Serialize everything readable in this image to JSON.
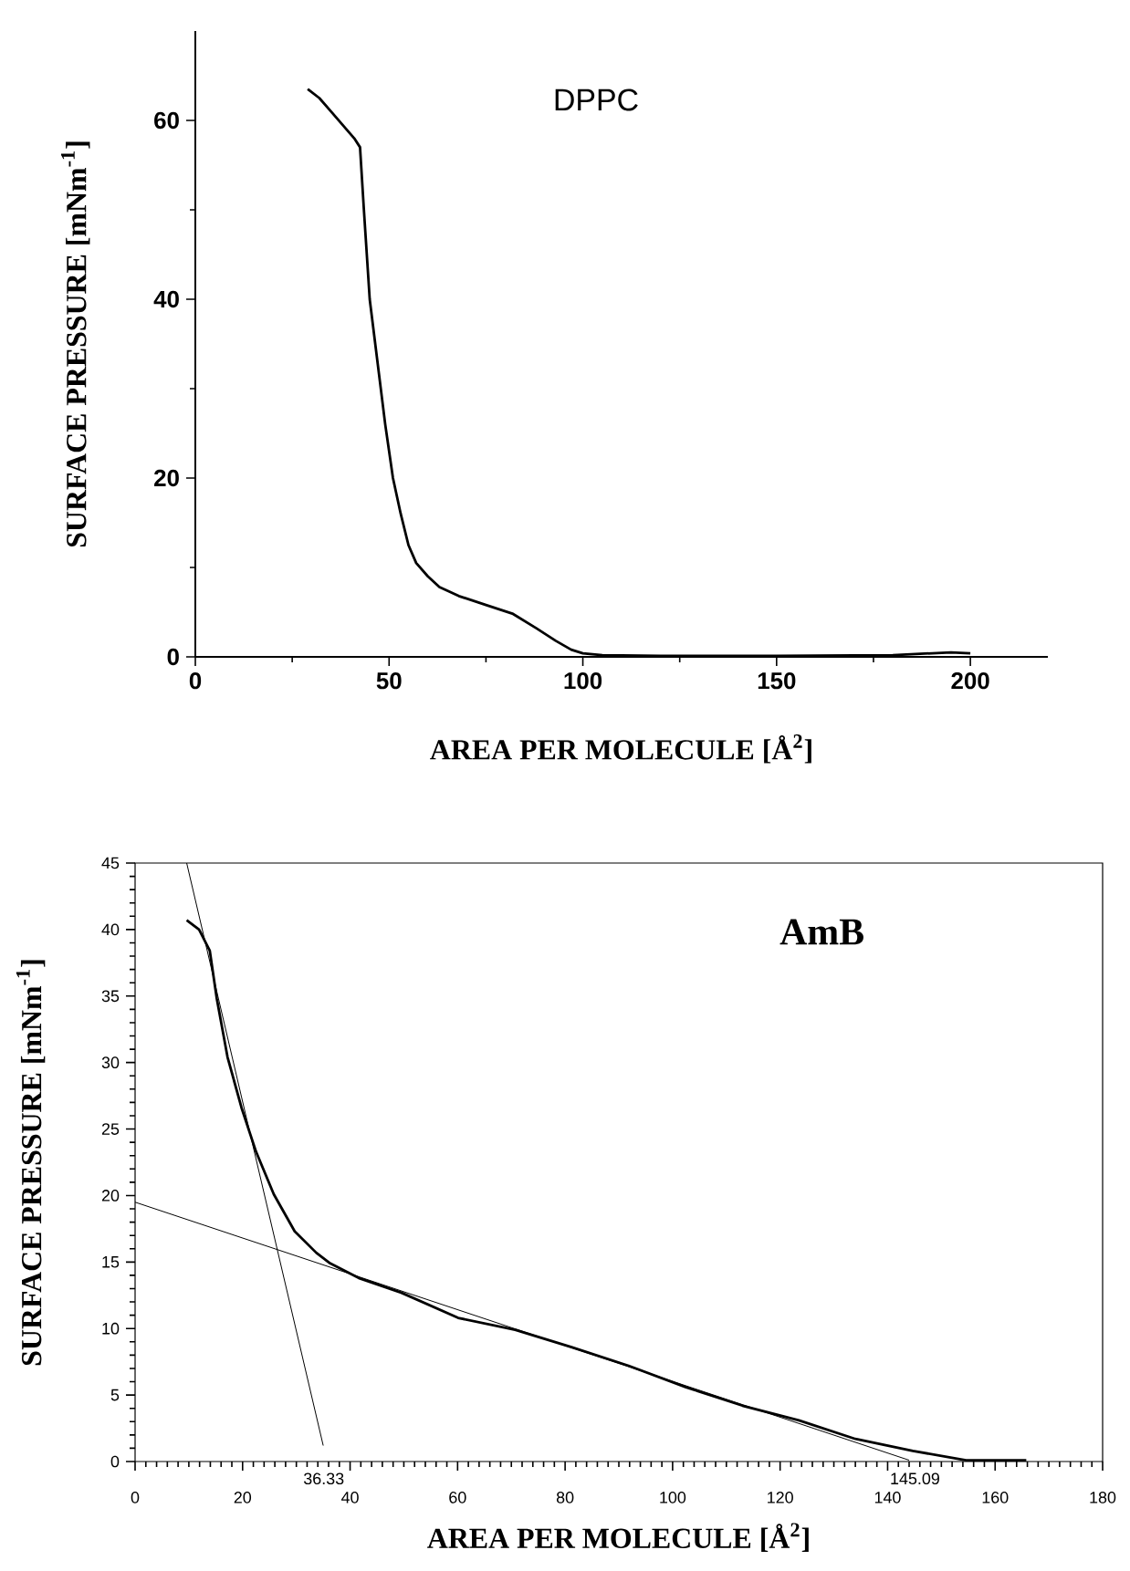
{
  "chart_data": [
    {
      "type": "line",
      "xlabel": "AREA PER MOLECULE [Å$^{2}$]",
      "ylabel": "SURFACE PRESSURE [mNm$^{-1}$]",
      "annotations": [
        "DPPC"
      ],
      "x": [
        29,
        32,
        35,
        38,
        41,
        42.5,
        43.5,
        45,
        47,
        49,
        51,
        53,
        55,
        57,
        60,
        63,
        68,
        75,
        82,
        88,
        93,
        97,
        100,
        105,
        120,
        150,
        180,
        195,
        200
      ],
      "series": [
        {
          "color": "#000000",
          "values": [
            63.5,
            62.5,
            61,
            59.5,
            58,
            57,
            50,
            40,
            33,
            26,
            20,
            16,
            12.5,
            10.5,
            9,
            7.8,
            6.8,
            5.8,
            4.8,
            3.2,
            1.8,
            0.8,
            0.4,
            0.2,
            0.1,
            0.1,
            0.2,
            0.5,
            0.4
          ]
        }
      ],
      "xlim": [
        0,
        220
      ],
      "ylim": [
        0,
        70
      ],
      "xticks": [
        0,
        {
          "value": 25,
          "label": null
        },
        50,
        {
          "value": 75,
          "label": null
        },
        100,
        {
          "value": 125,
          "label": null
        },
        150,
        {
          "value": 175,
          "label": null
        },
        200
      ],
      "yticks": [
        0,
        {
          "value": 10,
          "label": null
        },
        20,
        {
          "value": 30,
          "label": null
        },
        40,
        {
          "value": 50,
          "label": null
        },
        60
      ]
    },
    {
      "type": "line",
      "xlabel": "AREA PER MOLECULE [Å$^{2}$]",
      "ylabel": "SURFACE PRESSURE [mNm$^{-1}$]",
      "annotations": [
        "AmB",
        "36.33",
        {
          "text": "145.09",
          "x": 145.09,
          "y": 0
        }
      ],
      "x": [
        9.6,
        11.9,
        13.9,
        15.2,
        17.2,
        19.8,
        22.5,
        25.8,
        29.7,
        33.7,
        36.3,
        41.6,
        49.5,
        60.1,
        70.7,
        81.2,
        91.8,
        102.4,
        113,
        123.5,
        134,
        144.7,
        154.6,
        165.8
      ],
      "series": [
        {
          "color": "#000000",
          "values": [
            40.7,
            40.0,
            38.4,
            34.8,
            30.4,
            26.6,
            23.3,
            20.1,
            17.3,
            15.7,
            14.9,
            13.8,
            12.7,
            10.8,
            9.9,
            8.6,
            7.2,
            5.6,
            4.2,
            3.1,
            1.7,
            0.8,
            0.1,
            0.1
          ]
        },
        {
          "type": "line",
          "color": "#000000",
          "x": [
            9.6,
            35.0
          ],
          "values": [
            45,
            1.2
          ]
        },
        {
          "type": "line",
          "color": "#000000",
          "x": [
            0,
            144
          ],
          "values": [
            19.5,
            0.1
          ]
        }
      ],
      "xlim": [
        0,
        180
      ],
      "ylim": [
        0,
        45
      ],
      "xticks": [
        0,
        {
          "value": 2,
          "label": null
        },
        {
          "value": 4,
          "label": null
        },
        {
          "value": 6,
          "label": null
        },
        {
          "value": 8,
          "label": null
        },
        {
          "value": 10,
          "label": null
        },
        {
          "value": 12,
          "label": null
        },
        {
          "value": 14,
          "label": null
        },
        {
          "value": 16,
          "label": null
        },
        {
          "value": 18,
          "label": null
        },
        20,
        {
          "value": 22,
          "label": null
        },
        {
          "value": 24,
          "label": null
        },
        {
          "value": 26,
          "label": null
        },
        {
          "value": 28,
          "label": null
        },
        {
          "value": 30,
          "label": null
        },
        {
          "value": 32,
          "label": null
        },
        {
          "value": 34,
          "label": null
        },
        {
          "value": 36,
          "label": null
        },
        {
          "value": 38,
          "label": null
        },
        40,
        {
          "value": 42,
          "label": null
        },
        {
          "value": 44,
          "label": null
        },
        {
          "value": 46,
          "label": null
        },
        {
          "value": 48,
          "label": null
        },
        {
          "value": 50,
          "label": null
        },
        {
          "value": 52,
          "label": null
        },
        {
          "value": 54,
          "label": null
        },
        {
          "value": 56,
          "label": null
        },
        {
          "value": 58,
          "label": null
        },
        60,
        {
          "value": 62,
          "label": null
        },
        {
          "value": 64,
          "label": null
        },
        {
          "value": 66,
          "label": null
        },
        {
          "value": 68,
          "label": null
        },
        {
          "value": 70,
          "label": null
        },
        {
          "value": 72,
          "label": null
        },
        {
          "value": 74,
          "label": null
        },
        {
          "value": 76,
          "label": null
        },
        {
          "value": 78,
          "label": null
        },
        80,
        {
          "value": 82,
          "label": null
        },
        {
          "value": 84,
          "label": null
        },
        {
          "value": 86,
          "label": null
        },
        {
          "value": 88,
          "label": null
        },
        {
          "value": 90,
          "label": null
        },
        {
          "value": 92,
          "label": null
        },
        {
          "value": 94,
          "label": null
        },
        {
          "value": 96,
          "label": null
        },
        {
          "value": 98,
          "label": null
        },
        100,
        {
          "value": 102,
          "label": null
        },
        {
          "value": 104,
          "label": null
        },
        {
          "value": 106,
          "label": null
        },
        {
          "value": 108,
          "label": null
        },
        {
          "value": 110,
          "label": null
        },
        {
          "value": 112,
          "label": null
        },
        {
          "value": 114,
          "label": null
        },
        {
          "value": 116,
          "label": null
        },
        {
          "value": 118,
          "label": null
        },
        120,
        {
          "value": 122,
          "label": null
        },
        {
          "value": 124,
          "label": null
        },
        {
          "value": 126,
          "label": null
        },
        {
          "value": 128,
          "label": null
        },
        {
          "value": 130,
          "label": null
        },
        {
          "value": 132,
          "label": null
        },
        {
          "value": 134,
          "label": null
        },
        {
          "value": 136,
          "label": null
        },
        {
          "value": 138,
          "label": null
        },
        140,
        {
          "value": 142,
          "label": null
        },
        {
          "value": 144,
          "label": null
        },
        {
          "value": 146,
          "label": null
        },
        {
          "value": 148,
          "label": null
        },
        {
          "value": 150,
          "label": null
        },
        {
          "value": 152,
          "label": null
        },
        {
          "value": 154,
          "label": null
        },
        {
          "value": 156,
          "label": null
        },
        {
          "value": 158,
          "label": null
        },
        160,
        {
          "value": 162,
          "label": null
        },
        {
          "value": 164,
          "label": null
        },
        {
          "value": 166,
          "label": null
        },
        {
          "value": 168,
          "label": null
        },
        {
          "value": 170,
          "label": null
        },
        {
          "value": 172,
          "label": null
        },
        {
          "value": 174,
          "label": null
        },
        {
          "value": 176,
          "label": null
        },
        {
          "value": 178,
          "label": null
        },
        180
      ],
      "yticks": [
        0,
        {
          "value": 1,
          "label": null
        },
        {
          "value": 2,
          "label": null
        },
        {
          "value": 3,
          "label": null
        },
        {
          "value": 4,
          "label": null
        },
        5,
        {
          "value": 6,
          "label": null
        },
        {
          "value": 7,
          "label": null
        },
        {
          "value": 8,
          "label": null
        },
        {
          "value": 9,
          "label": null
        },
        10,
        {
          "value": 11,
          "label": null
        },
        {
          "value": 12,
          "label": null
        },
        {
          "value": 13,
          "label": null
        },
        {
          "value": 14,
          "label": null
        },
        15,
        {
          "value": 16,
          "label": null
        },
        {
          "value": 17,
          "label": null
        },
        {
          "value": 18,
          "label": null
        },
        {
          "value": 19,
          "label": null
        },
        20,
        {
          "value": 21,
          "label": null
        },
        {
          "value": 22,
          "label": null
        },
        {
          "value": 23,
          "label": null
        },
        {
          "value": 24,
          "label": null
        },
        25,
        {
          "value": 26,
          "label": null
        },
        {
          "value": 27,
          "label": null
        },
        {
          "value": 28,
          "label": null
        },
        {
          "value": 29,
          "label": null
        },
        30,
        {
          "value": 31,
          "label": null
        },
        {
          "value": 32,
          "label": null
        },
        {
          "value": 33,
          "label": null
        },
        {
          "value": 34,
          "label": null
        },
        35,
        {
          "value": 36,
          "label": null
        },
        {
          "value": 37,
          "label": null
        },
        {
          "value": 38,
          "label": null
        },
        {
          "value": 39,
          "label": null
        },
        40,
        {
          "value": 41,
          "label": null
        },
        {
          "value": 42,
          "label": null
        },
        {
          "value": 43,
          "label": null
        },
        {
          "value": 44,
          "label": null
        },
        45
      ]
    }
  ]
}
